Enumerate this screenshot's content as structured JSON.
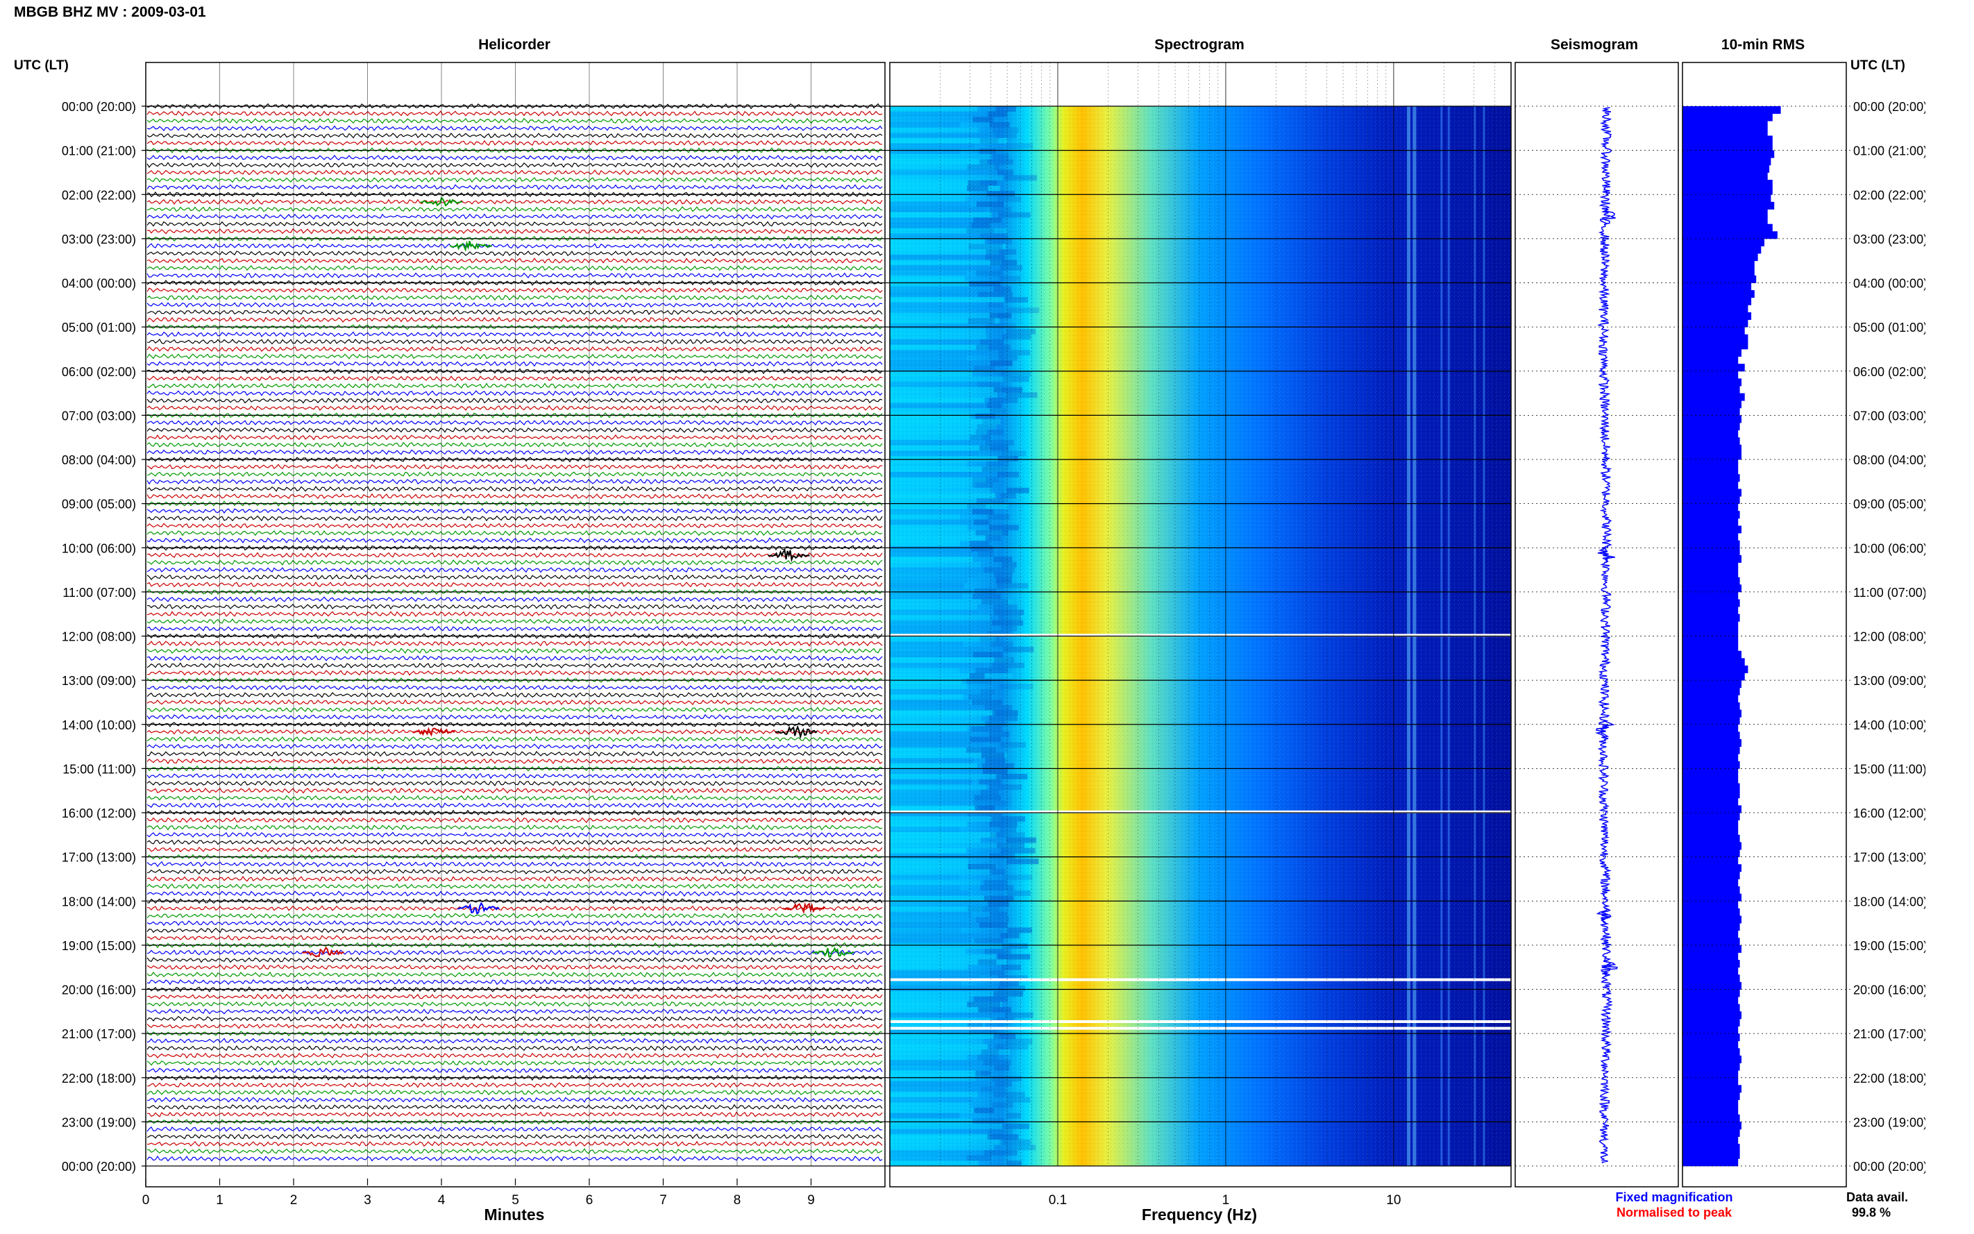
{
  "page_title": "MBGB BHZ MV : 2009-03-01",
  "utc_header_left": "UTC (LT)",
  "utc_header_right": "UTC (LT)",
  "time_labels": [
    "00:00 (20:00)",
    "01:00 (21:00)",
    "02:00 (22:00)",
    "03:00 (23:00)",
    "04:00 (00:00)",
    "05:00 (01:00)",
    "06:00 (02:00)",
    "07:00 (03:00)",
    "08:00 (04:00)",
    "09:00 (05:00)",
    "10:00 (06:00)",
    "11:00 (07:00)",
    "12:00 (08:00)",
    "13:00 (09:00)",
    "14:00 (10:00)",
    "15:00 (11:00)",
    "16:00 (12:00)",
    "17:00 (13:00)",
    "18:00 (14:00)",
    "19:00 (15:00)",
    "20:00 (16:00)",
    "21:00 (17:00)",
    "22:00 (18:00)",
    "23:00 (19:00)",
    "00:00 (20:00)"
  ],
  "legend": {
    "fixed": "Fixed magnification",
    "normalised": "Normalised to peak",
    "fixed_color": "#0000ff",
    "normalised_color": "#ff0000"
  },
  "data_avail": {
    "label": "Data avail.",
    "value": "99.8 %"
  },
  "chart_data": [
    {
      "type": "line",
      "panel": "helicorder",
      "title": "Helicorder",
      "xlabel": "Minutes",
      "xlim": [
        0,
        10
      ],
      "x_ticks": [
        "0",
        "1",
        "2",
        "3",
        "4",
        "5",
        "6",
        "7",
        "8",
        "9"
      ],
      "trace_colors": [
        "#000000",
        "#cc0000",
        "#009900",
        "#0000ff"
      ],
      "traces_per_hour": 6,
      "events": [
        {
          "hour": 2,
          "minute": 4.0,
          "color": "#009900"
        },
        {
          "hour": 3,
          "minute": 4.4,
          "color": "#009900"
        },
        {
          "hour": 10,
          "minute": 8.7,
          "color": "#000000"
        },
        {
          "hour": 14,
          "minute": 3.9,
          "color": "#cc0000"
        },
        {
          "hour": 14,
          "minute": 8.8,
          "color": "#000000"
        },
        {
          "hour": 18,
          "minute": 8.9,
          "color": "#cc0000"
        },
        {
          "hour": 18,
          "minute": 4.5,
          "color": "#0000ff"
        },
        {
          "hour": 19,
          "minute": 9.3,
          "color": "#009900"
        },
        {
          "hour": 19,
          "minute": 2.4,
          "color": "#cc0000"
        }
      ]
    },
    {
      "type": "heatmap",
      "panel": "spectrogram",
      "title": "Spectrogram",
      "xlabel": "Frequency (Hz)",
      "xscale": "log",
      "xlim": [
        0.01,
        50
      ],
      "x_ticks": [
        "0.1",
        "1",
        "10"
      ],
      "colormap": [
        "#00007f",
        "#0000ff",
        "#0080ff",
        "#00ffff",
        "#80ff80",
        "#ffff00",
        "#ff8000"
      ],
      "gaps_utc_hours": [
        11.95,
        15.95,
        19.75,
        20.7,
        20.85
      ]
    },
    {
      "type": "line",
      "panel": "seismogram",
      "title": "Seismogram",
      "events_utc_hours": [
        2.5,
        10.15,
        14.1,
        18.35,
        19.5
      ]
    },
    {
      "type": "bar",
      "panel": "rms",
      "title": "10-min RMS",
      "values": [
        60,
        55,
        52,
        52,
        55,
        55,
        56,
        54,
        53,
        52,
        55,
        55,
        54,
        56,
        52,
        52,
        55,
        58,
        50,
        48,
        46,
        44,
        44,
        45,
        42,
        44,
        42,
        40,
        42,
        40,
        38,
        40,
        40,
        36,
        34,
        38,
        34,
        36,
        35,
        38,
        36,
        35,
        36,
        35,
        34,
        35,
        36,
        36,
        34,
        34,
        35,
        34,
        36,
        35,
        34,
        35,
        34,
        36,
        34,
        35,
        35,
        36,
        34,
        34,
        35,
        36,
        34,
        35,
        34,
        35,
        34,
        34,
        34,
        34,
        36,
        38,
        40,
        38,
        36,
        35,
        34,
        35,
        36,
        35,
        34,
        35,
        36,
        35,
        34,
        35,
        34,
        34,
        35,
        35,
        34,
        36,
        35,
        34,
        34,
        35,
        36,
        35,
        34,
        36,
        35,
        34,
        35,
        36,
        34,
        35,
        36,
        35,
        34,
        35,
        36,
        34,
        35,
        34,
        35,
        36,
        35,
        34,
        35,
        36,
        35,
        34,
        35,
        34,
        35,
        36,
        35,
        34,
        34,
        36,
        35,
        34,
        34,
        35,
        36,
        35,
        34,
        35,
        35,
        34
      ]
    }
  ]
}
